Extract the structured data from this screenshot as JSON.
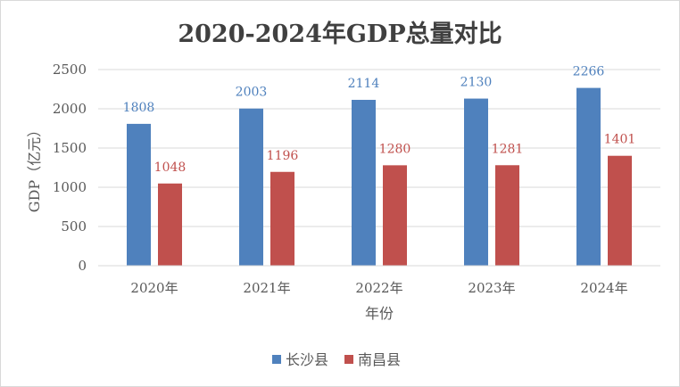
{
  "chart_data": {
    "type": "bar",
    "title": "2020-2024年GDP总量对比",
    "xlabel": "年份",
    "ylabel": "GDP（亿元）",
    "categories": [
      "2020年",
      "2021年",
      "2022年",
      "2023年",
      "2024年"
    ],
    "series": [
      {
        "name": "长沙县",
        "color": "#4f81bd",
        "label_color": "#4f81bd",
        "values": [
          1808,
          2003,
          2114,
          2130,
          2266
        ]
      },
      {
        "name": "南昌县",
        "color": "#c0504d",
        "label_color": "#c0504d",
        "values": [
          1048,
          1196,
          1280,
          1281,
          1401
        ]
      }
    ],
    "ylim": [
      0,
      2500
    ],
    "yticks": [
      0,
      500,
      1000,
      1500,
      2000,
      2500
    ],
    "grid": true,
    "legend_position": "bottom"
  }
}
